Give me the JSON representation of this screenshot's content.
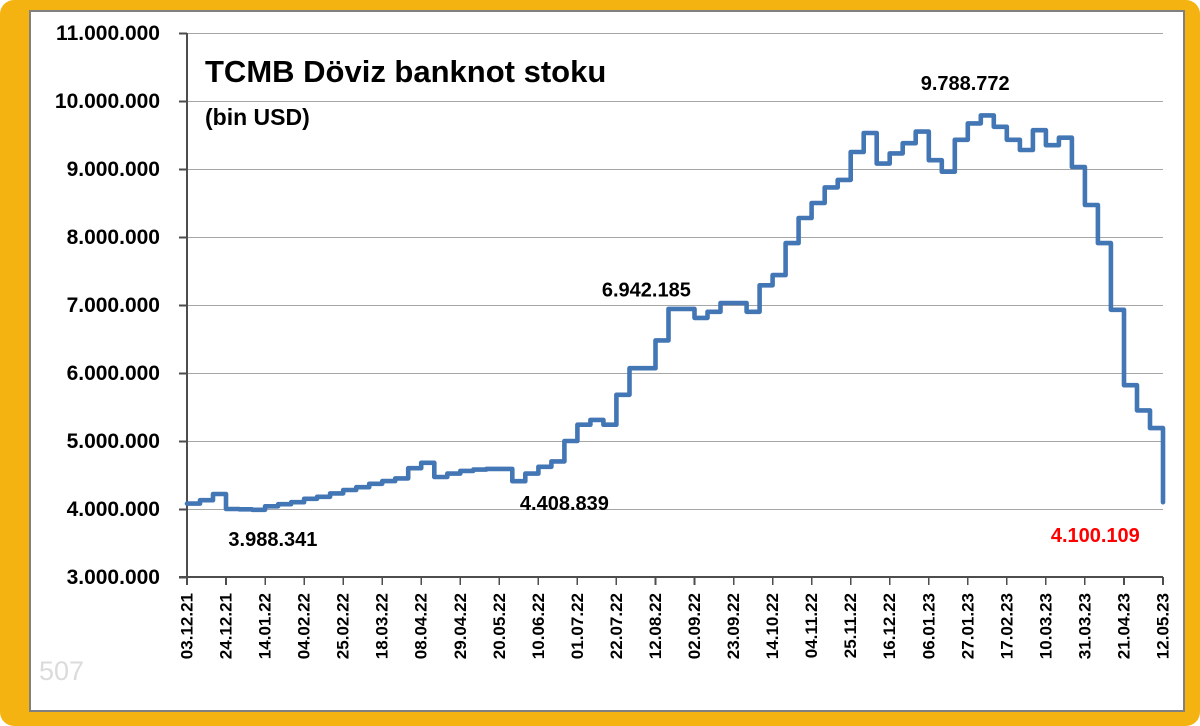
{
  "watermark": "507",
  "colors": {
    "frame_yellow": "#F5B312",
    "panel_border": "#808080",
    "line_blue": "#4376B5",
    "grid_gray": "#A6A6A6",
    "axis_gray": "#4D4D4D",
    "label_black": "#000000",
    "annotation_red": "#FF0000",
    "watermark_gray": "#DBDBDB"
  },
  "chart_data": {
    "type": "line",
    "title": "TCMB Döviz banknot stoku",
    "subtitle": "(bin USD)",
    "step_style": true,
    "grid": true,
    "legend_position": "none",
    "ylim": [
      3000000,
      11000000
    ],
    "y_tick_step": 1000000,
    "y_tick_labels": [
      "11.000.000",
      "10.000.000",
      "9.000.000",
      "8.000.000",
      "7.000.000",
      "6.000.000",
      "5.000.000",
      "4.000.000",
      "3.000.000"
    ],
    "x_tick_every": 3,
    "x_tick_labels": [
      "03.12.21",
      "24.12.21",
      "14.01.22",
      "04.02.22",
      "25.02.22",
      "18.03.22",
      "08.04.22",
      "29.04.22",
      "20.05.22",
      "10.06.22",
      "01.07.22",
      "22.07.22",
      "12.08.22",
      "02.09.22",
      "23.09.22",
      "14.10.22",
      "04.11.22",
      "25.11.22",
      "16.12.22",
      "06.01.23",
      "27.01.23",
      "17.02.23",
      "10.03.23",
      "31.03.23",
      "21.04.23",
      "12.05.23"
    ],
    "values": [
      4080000,
      4130000,
      4220000,
      4000000,
      3995000,
      3988341,
      4040000,
      4070000,
      4100000,
      4150000,
      4180000,
      4230000,
      4280000,
      4320000,
      4370000,
      4410000,
      4450000,
      4600000,
      4680000,
      4470000,
      4520000,
      4560000,
      4580000,
      4590000,
      4590000,
      4408839,
      4520000,
      4620000,
      4700000,
      5000000,
      5240000,
      5310000,
      5240000,
      5680000,
      6070000,
      6070000,
      6480000,
      6942185,
      6942185,
      6810000,
      6900000,
      7030000,
      7030000,
      6900000,
      7290000,
      7440000,
      7910000,
      8280000,
      8500000,
      8730000,
      8840000,
      9250000,
      9530000,
      9080000,
      9230000,
      9380000,
      9550000,
      9130000,
      8960000,
      9430000,
      9670000,
      9788772,
      9620000,
      9430000,
      9280000,
      9570000,
      9350000,
      9460000,
      9030000,
      8470000,
      7910000,
      6930000,
      5820000,
      5450000,
      5190000,
      4100109
    ],
    "annotations": [
      {
        "text": "3.988.341",
        "x_index": 6.6,
        "y": 3545000,
        "color": "#000000"
      },
      {
        "text": "4.408.839",
        "x_index": 29.0,
        "y": 4070000,
        "color": "#000000"
      },
      {
        "text": "6.942.185",
        "x_index": 35.3,
        "y": 7210000,
        "color": "#000000"
      },
      {
        "text": "9.788.772",
        "x_index": 59.8,
        "y": 10250000,
        "color": "#000000"
      },
      {
        "text": "4.100.109",
        "x_index": 69.8,
        "y": 3600000,
        "color": "#FF0000"
      }
    ]
  }
}
